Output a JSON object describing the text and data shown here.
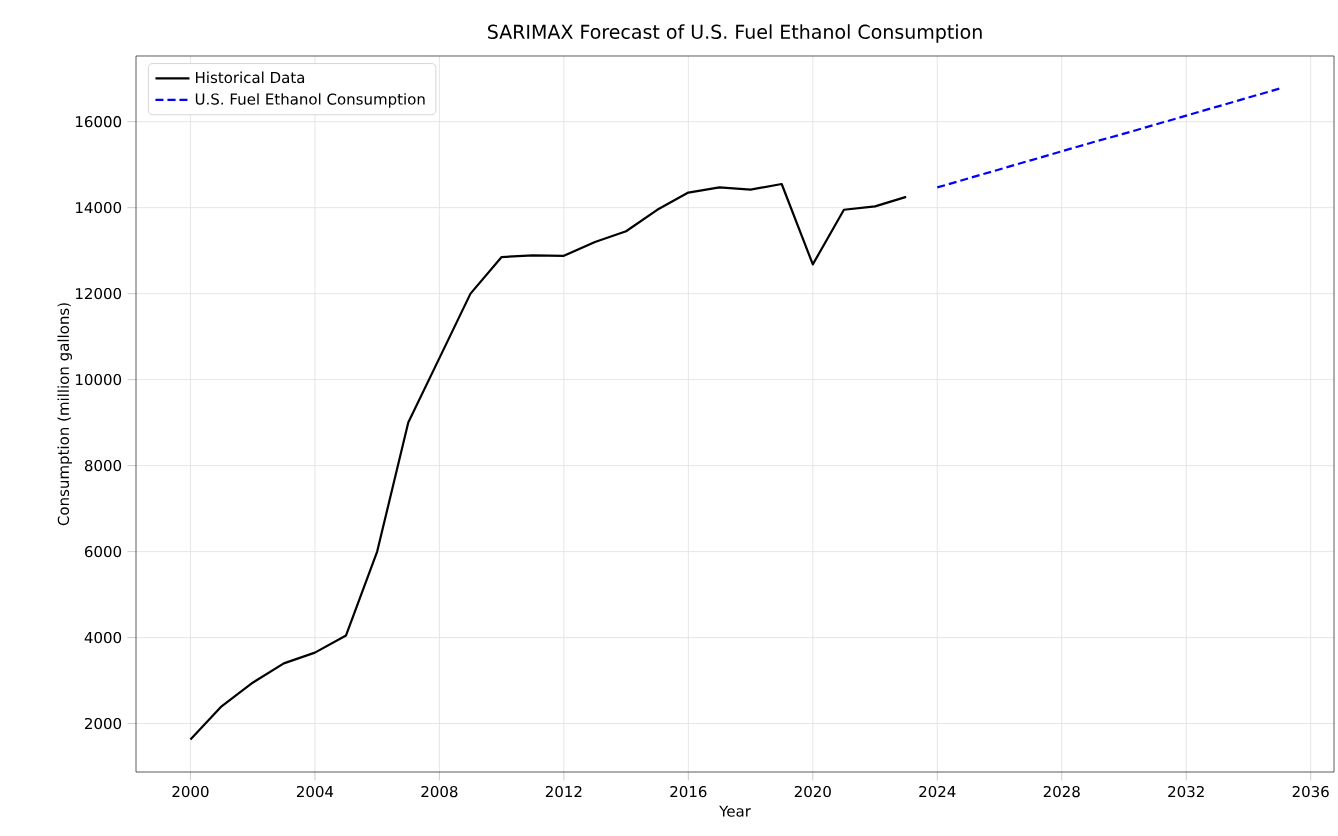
{
  "chart_data": {
    "type": "line",
    "title": "SARIMAX Forecast of U.S. Fuel Ethanol Consumption",
    "xlabel": "Year",
    "ylabel": "Consumption (million gallons)",
    "series": [
      {
        "name": "Historical Data",
        "color": "#000000",
        "line_style": "solid",
        "x": [
          2000,
          2001,
          2002,
          2003,
          2004,
          2005,
          2006,
          2007,
          2008,
          2009,
          2010,
          2011,
          2012,
          2013,
          2014,
          2015,
          2016,
          2017,
          2018,
          2019,
          2020,
          2021,
          2022,
          2023
        ],
        "values": [
          1630,
          2400,
          2950,
          3400,
          3650,
          4050,
          6000,
          9000,
          10500,
          12000,
          12850,
          12890,
          12880,
          13200,
          13450,
          13950,
          14350,
          14470,
          14420,
          14550,
          12680,
          13950,
          14030,
          14250
        ]
      },
      {
        "name": "U.S. Fuel Ethanol Consumption",
        "color": "#0000ff",
        "line_style": "dashed",
        "x": [
          2024,
          2025,
          2026,
          2027,
          2028,
          2029,
          2030,
          2031,
          2032,
          2033,
          2034,
          2035
        ],
        "values": [
          14470,
          14680,
          14890,
          15100,
          15310,
          15520,
          15720,
          15930,
          16140,
          16350,
          16560,
          16770
        ]
      }
    ],
    "xlim": [
      1998.25,
      2036.75
    ],
    "ylim": [
      873,
      17527
    ],
    "xticks": [
      2000,
      2004,
      2008,
      2012,
      2016,
      2020,
      2024,
      2028,
      2032,
      2036
    ],
    "yticks": [
      2000,
      4000,
      6000,
      8000,
      10000,
      12000,
      14000,
      16000
    ],
    "grid": true,
    "legend": "top left",
    "marker": "none"
  }
}
